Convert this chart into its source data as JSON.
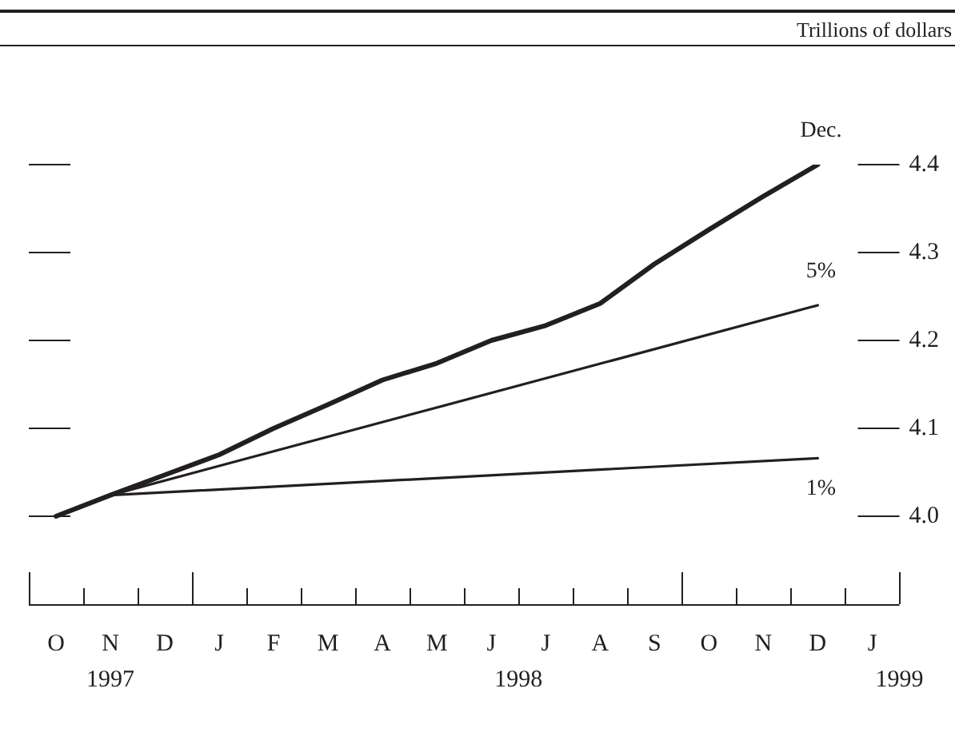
{
  "chart_data": {
    "type": "line",
    "categories": [
      "O",
      "N",
      "D",
      "J",
      "F",
      "M",
      "A",
      "M",
      "J",
      "J",
      "A",
      "S",
      "O",
      "N",
      "D",
      "J"
    ],
    "series": [
      {
        "name": "Dec.",
        "color": "#231f20",
        "values": [
          4.0,
          4.024,
          4.047,
          4.07,
          4.1,
          4.127,
          4.155,
          4.174,
          4.2,
          4.217,
          4.242,
          4.287,
          4.326,
          4.364,
          4.4,
          null
        ]
      },
      {
        "name": "5%",
        "color": "#231f20",
        "values": [
          null,
          4.024,
          null,
          null,
          null,
          null,
          null,
          null,
          null,
          null,
          null,
          null,
          null,
          null,
          4.24,
          null
        ]
      },
      {
        "name": "1%",
        "color": "#231f20",
        "values": [
          null,
          4.024,
          null,
          null,
          null,
          null,
          null,
          null,
          null,
          null,
          null,
          null,
          null,
          null,
          4.066,
          null
        ]
      }
    ],
    "ylim": [
      3.9,
      4.4
    ],
    "yticks": [
      {
        "value": 4,
        "label": "4.0"
      },
      {
        "value": 4.1,
        "label": "4.1"
      },
      {
        "value": 4.2,
        "label": "4.2"
      },
      {
        "value": 4.3,
        "label": "4.3"
      },
      {
        "value": 4.4,
        "label": "4.4"
      }
    ],
    "annotations": [
      "Trillions of dollars",
      "1997",
      "1998",
      "1999"
    ],
    "grid": "y",
    "legend": false,
    "marker": "none",
    "line_style": "solid"
  }
}
